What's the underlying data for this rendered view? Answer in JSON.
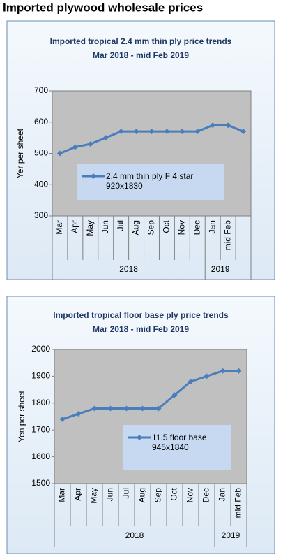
{
  "title": "Imported plywood wholesale prices",
  "chart_data": [
    {
      "type": "line",
      "title": "Imported tropical 2.4 mm thin ply price trends",
      "subtitle": "Mar 2018 -  mid Feb 2019",
      "y_label": "Yer per sheet",
      "categories": [
        "Mar",
        "Apr",
        "May",
        "Jun",
        "Jul",
        "Aug",
        "Sep",
        "Oct",
        "Nov",
        "Dec",
        "Jan",
        "mid Feb",
        null
      ],
      "groups": [
        {
          "label": "2018",
          "start": 0,
          "end": 9
        },
        {
          "label": "2019",
          "start": 10,
          "end": 11
        }
      ],
      "series": [
        {
          "name": "2.4 mm thin ply F 4 star 920x1830",
          "color": "#4a7ebb",
          "values": [
            500,
            520,
            530,
            550,
            570,
            570,
            570,
            570,
            570,
            570,
            590,
            590,
            570
          ]
        }
      ],
      "ylim": [
        300,
        700
      ],
      "yticks": [
        300,
        400,
        500,
        600,
        700
      ],
      "grid": false
    },
    {
      "type": "line",
      "title": "Imported tropical floor base ply price trends",
      "subtitle": "Mar 2018 - mid Feb 2019",
      "y_label": "Yen per sheet",
      "categories": [
        "Mar",
        "Apr",
        "May",
        "Jun",
        "Jul",
        "Aug",
        "Sep",
        "Oct",
        "Nov",
        "Dec",
        "Jan",
        "mid Feb"
      ],
      "groups": [
        {
          "label": "2018",
          "start": 0,
          "end": 9
        },
        {
          "label": "2019",
          "start": 10,
          "end": 11
        }
      ],
      "series": [
        {
          "name": "11.5 floor base 945x1840",
          "color": "#4a7ebb",
          "values": [
            1740,
            1760,
            1780,
            1780,
            1780,
            1780,
            1780,
            1830,
            1880,
            1900,
            1920,
            1920
          ]
        }
      ],
      "ylim": [
        1500,
        2000
      ],
      "yticks": [
        1500,
        1600,
        1700,
        1800,
        1900,
        2000
      ],
      "grid": false
    }
  ]
}
